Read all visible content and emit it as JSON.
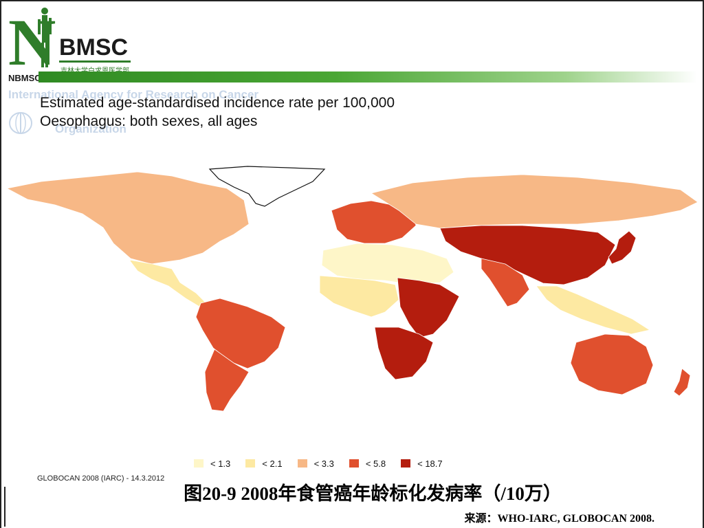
{
  "logo": {
    "letter": "N",
    "name": "BMSC",
    "subtitle": "吉林大学白求恩医学部",
    "small_label": "NBMSC"
  },
  "ghost_header": {
    "line1": "International Agency for Research on Cancer",
    "line2": "Organization"
  },
  "map": {
    "title_line1": "Estimated age-standardised incidence rate per 100,000",
    "title_line2": "Oesophagus: both sexes, all ages",
    "credit": "GLOBOCAN 2008 (IARC) - 14.3.2012",
    "legend": [
      {
        "label": "< 1.3",
        "color": "#fef6c8"
      },
      {
        "label": "< 2.1",
        "color": "#fde9a2"
      },
      {
        "label": "< 3.3",
        "color": "#f7b886"
      },
      {
        "label": "< 5.8",
        "color": "#e0502e"
      },
      {
        "label": "< 18.7",
        "color": "#b41d0e"
      }
    ],
    "regions": [
      {
        "name": "North America",
        "class": 2
      },
      {
        "name": "Greenland",
        "class": -1
      },
      {
        "name": "Mexico and Central America",
        "class": 1
      },
      {
        "name": "South America North",
        "class": 3
      },
      {
        "name": "South America South",
        "class": 3
      },
      {
        "name": "North Africa",
        "class": 0
      },
      {
        "name": "West Africa",
        "class": 1
      },
      {
        "name": "East Africa",
        "class": 4
      },
      {
        "name": "Southern Africa",
        "class": 4
      },
      {
        "name": "Western Europe",
        "class": 3
      },
      {
        "name": "Northern Russia",
        "class": 2
      },
      {
        "name": "Central Asia and China",
        "class": 4
      },
      {
        "name": "South Asia",
        "class": 3
      },
      {
        "name": "Southeast Asia",
        "class": 1
      },
      {
        "name": "Japan",
        "class": 4
      },
      {
        "name": "Australia",
        "class": 3
      },
      {
        "name": "New Zealand",
        "class": 3
      }
    ]
  },
  "caption": "图20-9  2008年食管癌年龄标化发病率（/10万）",
  "source": "来源：WHO-IARC, GLOBOCAN 2008."
}
